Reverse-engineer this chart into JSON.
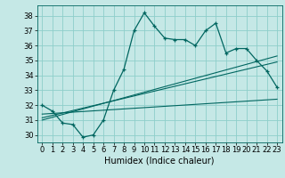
{
  "xlabel": "Humidex (Indice chaleur)",
  "bg_color": "#c5e8e6",
  "grid_color": "#8ececa",
  "line_color": "#006660",
  "xlim": [
    -0.5,
    23.5
  ],
  "ylim": [
    29.5,
    38.7
  ],
  "xticks": [
    0,
    1,
    2,
    3,
    4,
    5,
    6,
    7,
    8,
    9,
    10,
    11,
    12,
    13,
    14,
    15,
    16,
    17,
    18,
    19,
    20,
    21,
    22,
    23
  ],
  "yticks": [
    30,
    31,
    32,
    33,
    34,
    35,
    36,
    37,
    38
  ],
  "main_y": [
    32.0,
    31.6,
    30.8,
    30.7,
    29.85,
    30.0,
    31.0,
    33.0,
    34.4,
    37.0,
    38.2,
    37.3,
    36.5,
    36.4,
    36.4,
    36.0,
    37.0,
    37.5,
    35.5,
    35.8,
    35.8,
    35.0,
    34.3,
    33.2
  ],
  "trend1_x0": 0,
  "trend1_y0": 31.0,
  "trend1_x1": 23,
  "trend1_y1": 35.3,
  "trend2_x0": 0,
  "trend2_y0": 31.15,
  "trend2_x1": 23,
  "trend2_y1": 34.9,
  "trend3_x0": 0,
  "trend3_y0": 31.4,
  "trend3_x1": 23,
  "trend3_y1": 32.4,
  "xlabel_fontsize": 7,
  "tick_fontsize": 6
}
